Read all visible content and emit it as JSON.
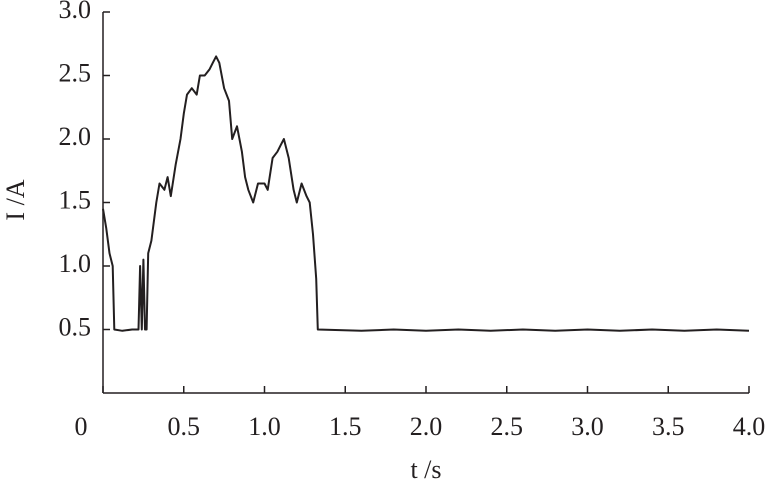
{
  "chart_data": {
    "type": "line",
    "xlabel": "t /s",
    "ylabel": "I /A",
    "xlim": [
      0,
      4
    ],
    "ylim": [
      0,
      3
    ],
    "xticks": [
      0,
      0.5,
      {
        "value": 1,
        "label": "1.0"
      },
      1.5,
      {
        "value": 2,
        "label": "2.0"
      },
      2.5,
      {
        "value": 3,
        "label": "3.0"
      },
      3.5,
      {
        "value": 4,
        "label": "4.0"
      }
    ],
    "yticks": [
      0.5,
      {
        "value": 1,
        "label": "1.0"
      },
      1.5,
      {
        "value": 2,
        "label": "2.0"
      },
      2.5,
      {
        "value": 3,
        "label": "3.0"
      }
    ],
    "series": [
      {
        "color": "#231f20",
        "x": [
          0,
          0.02,
          0.04,
          0.06,
          0.07,
          0.12,
          0.18,
          0.22,
          0.23,
          0.24,
          0.25,
          0.26,
          0.27,
          0.28,
          0.3,
          0.33,
          0.35,
          0.38,
          0.4,
          0.42,
          0.45,
          0.48,
          0.5,
          0.52,
          0.55,
          0.58,
          0.6,
          0.63,
          0.66,
          0.68,
          0.7,
          0.72,
          0.75,
          0.78,
          0.8,
          0.83,
          0.86,
          0.88,
          0.9,
          0.93,
          0.96,
          1.0,
          1.02,
          1.05,
          1.08,
          1.1,
          1.12,
          1.15,
          1.18,
          1.2,
          1.23,
          1.26,
          1.28,
          1.3,
          1.32,
          1.33,
          1.6,
          1.8,
          2.0,
          2.2,
          2.4,
          2.6,
          2.8,
          3.0,
          3.2,
          3.4,
          3.6,
          3.8,
          4.0
        ],
        "values": [
          1.45,
          1.3,
          1.1,
          1.0,
          0.5,
          0.49,
          0.5,
          0.5,
          1.0,
          0.5,
          1.05,
          0.5,
          0.5,
          1.1,
          1.2,
          1.5,
          1.65,
          1.6,
          1.7,
          1.55,
          1.8,
          2.0,
          2.2,
          2.35,
          2.4,
          2.35,
          2.5,
          2.5,
          2.55,
          2.6,
          2.65,
          2.6,
          2.4,
          2.3,
          2.0,
          2.1,
          1.9,
          1.7,
          1.6,
          1.5,
          1.65,
          1.65,
          1.6,
          1.85,
          1.9,
          1.95,
          2.0,
          1.85,
          1.6,
          1.5,
          1.65,
          1.55,
          1.5,
          1.25,
          0.9,
          0.5,
          0.49,
          0.5,
          0.49,
          0.5,
          0.49,
          0.5,
          0.49,
          0.5,
          0.49,
          0.5,
          0.49,
          0.5,
          0.49
        ]
      }
    ]
  }
}
